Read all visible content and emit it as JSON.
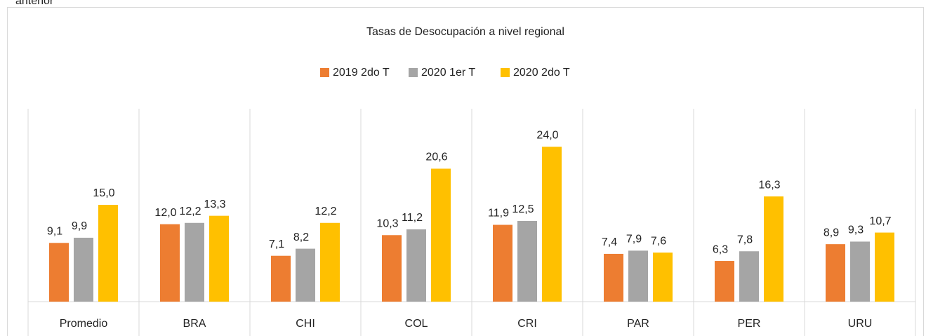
{
  "context_text": "anterior",
  "chart_data": {
    "type": "bar",
    "title": "Tasas de Desocupación a nivel regional",
    "categories": [
      "Promedio",
      "BRA",
      "CHI",
      "COL",
      "CRI",
      "PAR",
      "PER",
      "URU"
    ],
    "series": [
      {
        "name": "2019 2do T",
        "color": "#ed7d31",
        "values": [
          9.1,
          12.0,
          7.1,
          10.3,
          11.9,
          7.4,
          6.3,
          8.9
        ],
        "value_labels": [
          "9,1",
          "12,0",
          "7,1",
          "10,3",
          "11,9",
          "7,4",
          "6,3",
          "8,9"
        ]
      },
      {
        "name": "2020 1er T",
        "color": "#a5a5a5",
        "values": [
          9.9,
          12.2,
          8.2,
          11.2,
          12.5,
          7.9,
          7.8,
          9.3
        ],
        "value_labels": [
          "9,9",
          "12,2",
          "8,2",
          "11,2",
          "12,5",
          "7,9",
          "7,8",
          "9,3"
        ]
      },
      {
        "name": "2020 2do T",
        "color": "#ffc000",
        "values": [
          15.0,
          13.3,
          12.2,
          20.6,
          24.0,
          7.6,
          16.3,
          10.7
        ],
        "value_labels": [
          "15,0",
          "13,3",
          "12,2",
          "20,6",
          "24,0",
          "7,6",
          "16,3",
          "10,7"
        ]
      }
    ],
    "ylim": [
      0,
      30
    ],
    "legend": "top"
  }
}
